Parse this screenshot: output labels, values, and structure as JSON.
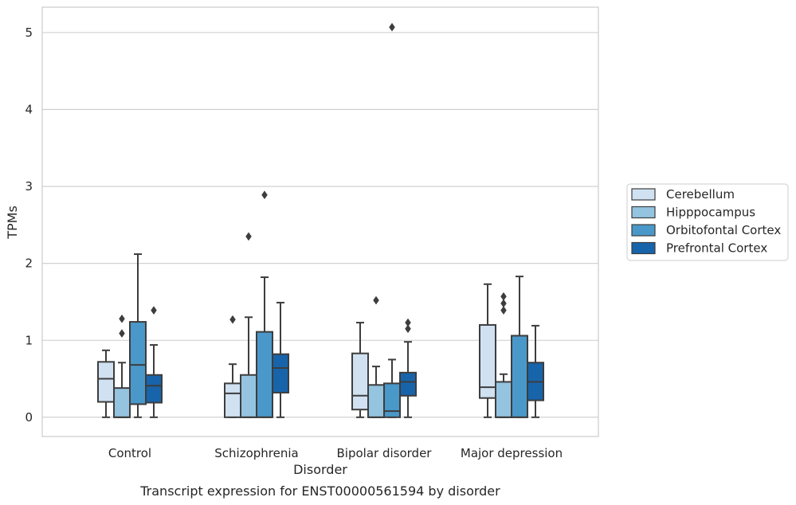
{
  "chart_data": {
    "type": "box",
    "title": "",
    "caption": "Transcript expression for ENST00000561594 by disorder",
    "xlabel": "Disorder",
    "ylabel": "TPMs",
    "ylim": [
      -0.25,
      5.33
    ],
    "yticks": [
      0,
      1,
      2,
      3,
      4,
      5
    ],
    "ytick_labels": [
      "0",
      "1",
      "2",
      "3",
      "4",
      "5"
    ],
    "grid": "horizontal",
    "legend_position": "right",
    "categories": [
      "Control",
      "Schizophrenia",
      "Bipolar disorder",
      "Major depression"
    ],
    "series": [
      {
        "name": "Cerebellum",
        "color": "#d0e1f2",
        "boxes": [
          {
            "whislo": 0.0,
            "q1": 0.2,
            "med": 0.5,
            "q3": 0.72,
            "whishi": 0.87,
            "fliers": []
          },
          {
            "whislo": 0.0,
            "q1": 0.0,
            "med": 0.31,
            "q3": 0.44,
            "whishi": 0.69,
            "fliers": [
              1.27
            ]
          },
          {
            "whislo": 0.0,
            "q1": 0.1,
            "med": 0.28,
            "q3": 0.83,
            "whishi": 1.23,
            "fliers": []
          },
          {
            "whislo": 0.0,
            "q1": 0.25,
            "med": 0.39,
            "q3": 1.2,
            "whishi": 1.73,
            "fliers": []
          }
        ]
      },
      {
        "name": "Hipppocampus",
        "color": "#94c4df",
        "boxes": [
          {
            "whislo": 0.0,
            "q1": 0.0,
            "med": 0.0,
            "q3": 0.38,
            "whishi": 0.71,
            "fliers": [
              1.09,
              1.28
            ]
          },
          {
            "whislo": 0.0,
            "q1": 0.0,
            "med": 0.0,
            "q3": 0.55,
            "whishi": 1.3,
            "fliers": [
              2.35
            ]
          },
          {
            "whislo": 0.0,
            "q1": 0.0,
            "med": 0.0,
            "q3": 0.42,
            "whishi": 0.66,
            "fliers": [
              1.52
            ]
          },
          {
            "whislo": 0.0,
            "q1": 0.0,
            "med": 0.0,
            "q3": 0.46,
            "whishi": 0.56,
            "fliers": [
              1.39,
              1.48,
              1.57
            ]
          }
        ]
      },
      {
        "name": "Orbitofontal Cortex",
        "color": "#4a98c9",
        "boxes": [
          {
            "whislo": 0.0,
            "q1": 0.17,
            "med": 0.68,
            "q3": 1.24,
            "whishi": 2.12,
            "fliers": []
          },
          {
            "whislo": 0.0,
            "q1": 0.0,
            "med": 0.0,
            "q3": 1.11,
            "whishi": 1.82,
            "fliers": [
              2.89
            ]
          },
          {
            "whislo": 0.0,
            "q1": 0.0,
            "med": 0.08,
            "q3": 0.44,
            "whishi": 0.75,
            "fliers": [
              5.07
            ]
          },
          {
            "whislo": 0.0,
            "q1": 0.0,
            "med": 0.0,
            "q3": 1.06,
            "whishi": 1.83,
            "fliers": []
          }
        ]
      },
      {
        "name": "Prefrontal Cortex",
        "color": "#1764ab",
        "boxes": [
          {
            "whislo": 0.0,
            "q1": 0.19,
            "med": 0.41,
            "q3": 0.55,
            "whishi": 0.94,
            "fliers": [
              1.39
            ]
          },
          {
            "whislo": 0.0,
            "q1": 0.32,
            "med": 0.64,
            "q3": 0.82,
            "whishi": 1.49,
            "fliers": []
          },
          {
            "whislo": 0.0,
            "q1": 0.28,
            "med": 0.46,
            "q3": 0.58,
            "whishi": 0.98,
            "fliers": [
              1.15,
              1.23
            ]
          },
          {
            "whislo": 0.0,
            "q1": 0.22,
            "med": 0.46,
            "q3": 0.71,
            "whishi": 1.19,
            "fliers": []
          }
        ]
      }
    ]
  }
}
